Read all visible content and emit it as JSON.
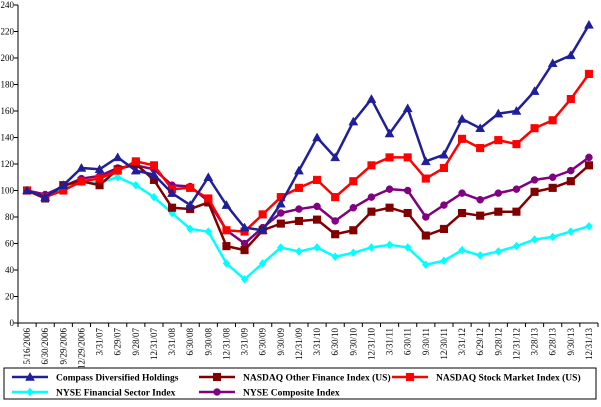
{
  "chart_data": {
    "type": "line",
    "categories": [
      "5/16/2006",
      "6/30/2006",
      "9/29/2006",
      "12/29/2006",
      "3/31/07",
      "6/29/07",
      "9/28/07",
      "12/31/07",
      "3/31/08",
      "6/30/08",
      "9/30/08",
      "12/31/08",
      "3/31/09",
      "6/30/09",
      "9/30/09",
      "12/31/09",
      "3/31/10",
      "6/30/10",
      "9/30/10",
      "12/31/10",
      "3/31/11",
      "6/30/11",
      "9/30/11",
      "12/30/11",
      "3/31/12",
      "6/29/12",
      "9/28/12",
      "12/31/12",
      "3/28/13",
      "6/28/13",
      "9/30/13",
      "12/31/13"
    ],
    "ylim": [
      0,
      240
    ],
    "yticks": [
      0,
      20,
      40,
      60,
      80,
      100,
      120,
      140,
      160,
      180,
      200,
      220,
      240
    ],
    "grid": false,
    "legend_position": "bottom",
    "series": [
      {
        "name": "Compass Diversified Holdings",
        "color": "#1f1f99",
        "marker": "triangle",
        "values": [
          100,
          95,
          104,
          117,
          116,
          125,
          115,
          112,
          98,
          89,
          110,
          89,
          72,
          70,
          90,
          115,
          140,
          125,
          152,
          169,
          143,
          162,
          122,
          127,
          154,
          147,
          158,
          160,
          175,
          196,
          202,
          225
        ]
      },
      {
        "name": "NASDAQ Other Finance Index (US)",
        "color": "#800000",
        "marker": "square",
        "values": [
          100,
          94,
          104,
          107,
          104,
          116,
          120,
          108,
          87,
          86,
          91,
          58,
          55,
          70,
          75,
          77,
          78,
          67,
          70,
          84,
          87,
          83,
          66,
          71,
          83,
          81,
          84,
          84,
          99,
          102,
          107,
          119
        ]
      },
      {
        "name": "NASDAQ Stock Market Index (US)",
        "color": "#ff0000",
        "marker": "square",
        "values": [
          100,
          95,
          100,
          107,
          109,
          115,
          122,
          119,
          101,
          102,
          94,
          70,
          69,
          82,
          95,
          102,
          108,
          95,
          107,
          119,
          125,
          125,
          109,
          117,
          139,
          132,
          138,
          135,
          147,
          153,
          169,
          188
        ]
      },
      {
        "name": "NYSE Financial Sector Index",
        "color": "#00ffff",
        "marker": "diamond",
        "values": [
          100,
          96,
          101,
          106,
          106,
          110,
          104,
          95,
          83,
          71,
          69,
          45,
          33,
          45,
          57,
          54,
          57,
          50,
          53,
          57,
          59,
          57,
          44,
          47,
          55,
          51,
          54,
          58,
          63,
          65,
          69,
          73
        ]
      },
      {
        "name": "NYSE Composite Index",
        "color": "#800080",
        "marker": "circle",
        "values": [
          100,
          97,
          103,
          109,
          111,
          117,
          119,
          116,
          104,
          103,
          92,
          70,
          60,
          72,
          83,
          86,
          88,
          77,
          87,
          95,
          101,
          100,
          80,
          89,
          98,
          93,
          98,
          101,
          108,
          110,
          115,
          125
        ]
      }
    ]
  }
}
